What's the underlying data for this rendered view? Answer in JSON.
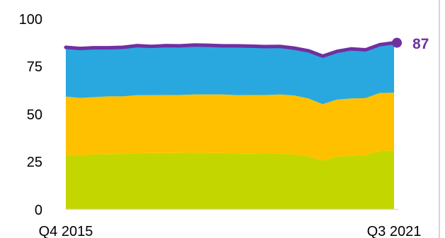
{
  "chart_data": {
    "type": "area",
    "stacked": true,
    "x_labels": [
      "Q4 2015",
      "Q3 2021"
    ],
    "x": [
      "Q4 2015",
      "Q1 2016",
      "Q2 2016",
      "Q3 2016",
      "Q4 2016",
      "Q1 2017",
      "Q2 2017",
      "Q3 2017",
      "Q4 2017",
      "Q1 2018",
      "Q2 2018",
      "Q3 2018",
      "Q4 2018",
      "Q1 2019",
      "Q2 2019",
      "Q3 2019",
      "Q4 2019",
      "Q1 2020",
      "Q2 2020",
      "Q3 2020",
      "Q4 2020",
      "Q1 2021",
      "Q2 2021",
      "Q3 2021"
    ],
    "series": [
      {
        "color": "#c4d600",
        "values": [
          28.5,
          28.3,
          28.7,
          28.8,
          28.9,
          29.2,
          29.4,
          29.3,
          29.4,
          29.5,
          29.4,
          29.3,
          29.2,
          29.1,
          29.3,
          29.0,
          28.6,
          27.7,
          25.4,
          27.5,
          28.0,
          28.3,
          30.5,
          30.7
        ]
      },
      {
        "color": "#ffc000",
        "values": [
          30.5,
          30.0,
          30.0,
          30.3,
          30.2,
          30.5,
          30.3,
          30.5,
          30.4,
          30.6,
          30.7,
          30.8,
          30.5,
          30.7,
          30.5,
          31.1,
          31.0,
          30.3,
          29.6,
          29.9,
          30.0,
          29.9,
          30.4,
          30.3
        ]
      },
      {
        "color": "#29a8e0",
        "values": [
          25.8,
          25.9,
          25.9,
          25.5,
          25.7,
          26.0,
          25.6,
          25.9,
          25.8,
          25.9,
          25.8,
          25.5,
          25.9,
          25.6,
          25.4,
          25.2,
          24.8,
          25.0,
          25.2,
          25.3,
          26.0,
          25.3,
          25.3,
          26.2
        ]
      }
    ],
    "total_line": {
      "color": "#7030a0",
      "values": [
        84.8,
        84.2,
        84.6,
        84.6,
        84.8,
        85.7,
        85.3,
        85.7,
        85.6,
        86.0,
        85.9,
        85.6,
        85.6,
        85.4,
        85.2,
        85.3,
        84.4,
        83.0,
        80.2,
        82.7,
        84.0,
        83.5,
        86.2,
        87.2
      ]
    },
    "end_label": "87",
    "y_ticks": [
      "0",
      "25",
      "50",
      "75",
      "100"
    ],
    "ylim": [
      0,
      100
    ],
    "grid": false
  }
}
